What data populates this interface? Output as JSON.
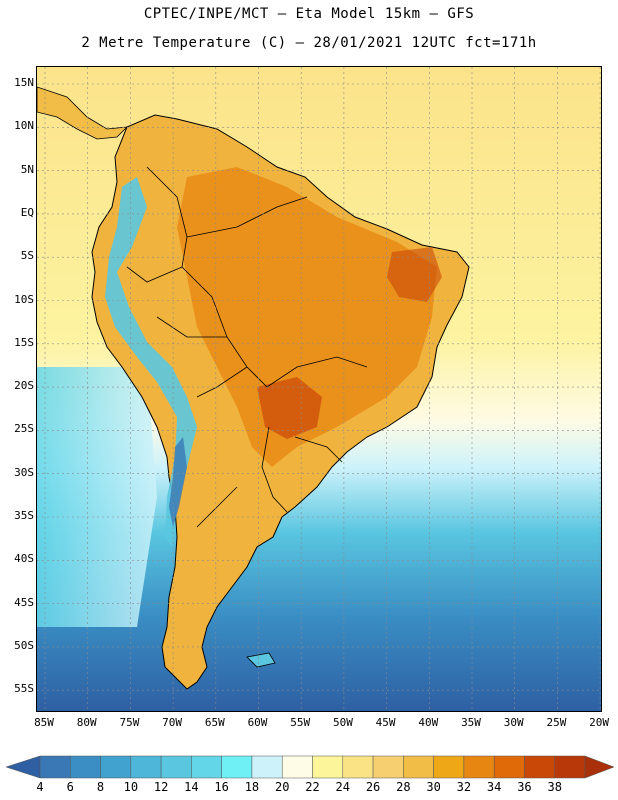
{
  "title": {
    "line1": "CPTEC/INPE/MCT –  Eta Model 15km – GFS",
    "line2": "2 Metre Temperature (C) – 28/01/2021 12UTC fct=171h"
  },
  "map": {
    "lat_labels": [
      "15N",
      "10N",
      "5N",
      "EQ",
      "5S",
      "10S",
      "15S",
      "20S",
      "25S",
      "30S",
      "35S",
      "40S",
      "45S",
      "50S",
      "55S"
    ],
    "lon_labels": [
      "85W",
      "80W",
      "75W",
      "70W",
      "65W",
      "60W",
      "55W",
      "50W",
      "45W",
      "40W",
      "35W",
      "30W",
      "25W",
      "20W"
    ],
    "lat_range": [
      15,
      -56
    ],
    "lon_range": [
      -86,
      -20
    ]
  },
  "colorbar": {
    "labels": [
      "4",
      "6",
      "8",
      "10",
      "12",
      "14",
      "16",
      "18",
      "20",
      "22",
      "24",
      "26",
      "28",
      "30",
      "32",
      "34",
      "36",
      "38"
    ],
    "colors": [
      "#3a78b5",
      "#3a8ec4",
      "#42a2cf",
      "#4db6d9",
      "#5ac6e0",
      "#63d6e8",
      "#6ef0f5",
      "#cdf2fa",
      "#fefbe6",
      "#fdf59a",
      "#fae385",
      "#f6d070",
      "#f1bd46",
      "#eea716",
      "#e88612",
      "#e06a08",
      "#c94707",
      "#b8380a"
    ],
    "under_color": "#2e5fa3",
    "over_color": "#a8300a"
  }
}
